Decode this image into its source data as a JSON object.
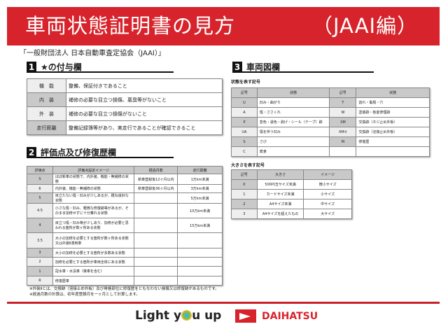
{
  "title": "車両状態証明書の見方",
  "title_sub": "（JAAI編）",
  "org": "「一般財団法人 日本自動車査定協会（JAAI）」",
  "s1": {
    "num": "1",
    "title": "★の付与欄",
    "rows": [
      [
        "機　能",
        "整備、保証付きであること"
      ],
      [
        "内　装",
        "補修の必要な目立つ損傷、悪臭等がないこと"
      ],
      [
        "外　装",
        "補修の必要な目立つ損傷がないこと"
      ],
      [
        "走行距離",
        "整備記録簿等があり、実走行であることが確認できること"
      ]
    ]
  },
  "s2": {
    "num": "2",
    "title": "評価点及び修復歴欄",
    "headers": [
      "評価点",
      "評価点設定イメージ",
      "経過月数",
      "走行距離"
    ],
    "rows": [
      [
        "S",
        "ほぼ新車の状態で、内外装、機能・無補修の状態",
        "新車登録後12ヶ月以内",
        "1万km未満"
      ],
      [
        "6",
        "内外装、機能・無補修の状態",
        "新車登録後36ヶ月以内",
        "3万km未満"
      ],
      [
        "5",
        "目立たない傷・凹みが少しあるが、概ね良好な状態",
        "",
        "5万km未満"
      ],
      [
        "4.5",
        "小さな傷・凹み、軽微な修復跡等があるが、そのまま加修せずに十分乗れる状態",
        "",
        "10万km未満"
      ],
      [
        "4",
        "目立つ傷・凹み等が少しあり、加修が必要と思われる箇所が数ヶ所ある状態",
        "",
        "15万km未満"
      ],
      [
        "3.5",
        "大小の加修を必要とする箇所が数ヶ所ある状態又は外装Ⅱ適用車",
        "",
        ""
      ],
      [
        "3",
        "大小の加修を必要とする箇所が多数ある状態",
        "",
        ""
      ],
      [
        "2",
        "加修を必要とする箇所が車両全体にある状態",
        "",
        ""
      ],
      [
        "1",
        "冠水車・水没車（喪車を含む）",
        "",
        ""
      ],
      [
        "R",
        "修復歴車",
        "",
        ""
      ]
    ]
  },
  "s3": {
    "num": "3",
    "title": "車両図欄",
    "sub1": "状態を表す記号",
    "headers": [
      "記号",
      "状態",
      "記号",
      "状態"
    ],
    "rows": [
      [
        "U",
        "凹み・曲がり",
        "T",
        "割れ・亀裂・穴"
      ],
      [
        "A",
        "傷・ささくれ",
        "W",
        "塗装跡・板金修理跡"
      ],
      [
        "P",
        "変色・退色・剥げ・シール（テープ）跡",
        "XM",
        "交換跡（ネジ止め外板）"
      ],
      [
        "UA",
        "傷を伴う凹み",
        "XM②",
        "交換跡（溶接止め外板）"
      ],
      [
        "S",
        "さび",
        "M",
        "修復歴"
      ],
      [
        "C",
        "腐食",
        "",
        ""
      ]
    ],
    "sub2": "大きさを表す記号",
    "size_headers": [
      "記号",
      "大きさ",
      "イメージ"
    ],
    "size_rows": [
      [
        "0",
        "500円玉サイズ未満",
        "微小サイズ"
      ],
      [
        "1",
        "カードサイズ未満",
        "小サイズ"
      ],
      [
        "2",
        "A4サイズ未満",
        "中サイズ"
      ],
      [
        "3",
        "A4サイズを超えたもの",
        "大サイズ"
      ]
    ]
  },
  "notes": [
    "※外装Ⅱとは、交換跡（溶接止め外板）及び骨格部位に修復歴をともなわない損傷又は修復跡があるものです。",
    "※経過月数の計算は、初年度登録月を一ヶ月として計算します。"
  ],
  "footer": {
    "slogan_pre": "Light y",
    "slogan_post": "u up",
    "brand": "DAIHATSU"
  },
  "colors": {
    "brand_red": "#d7232b"
  }
}
